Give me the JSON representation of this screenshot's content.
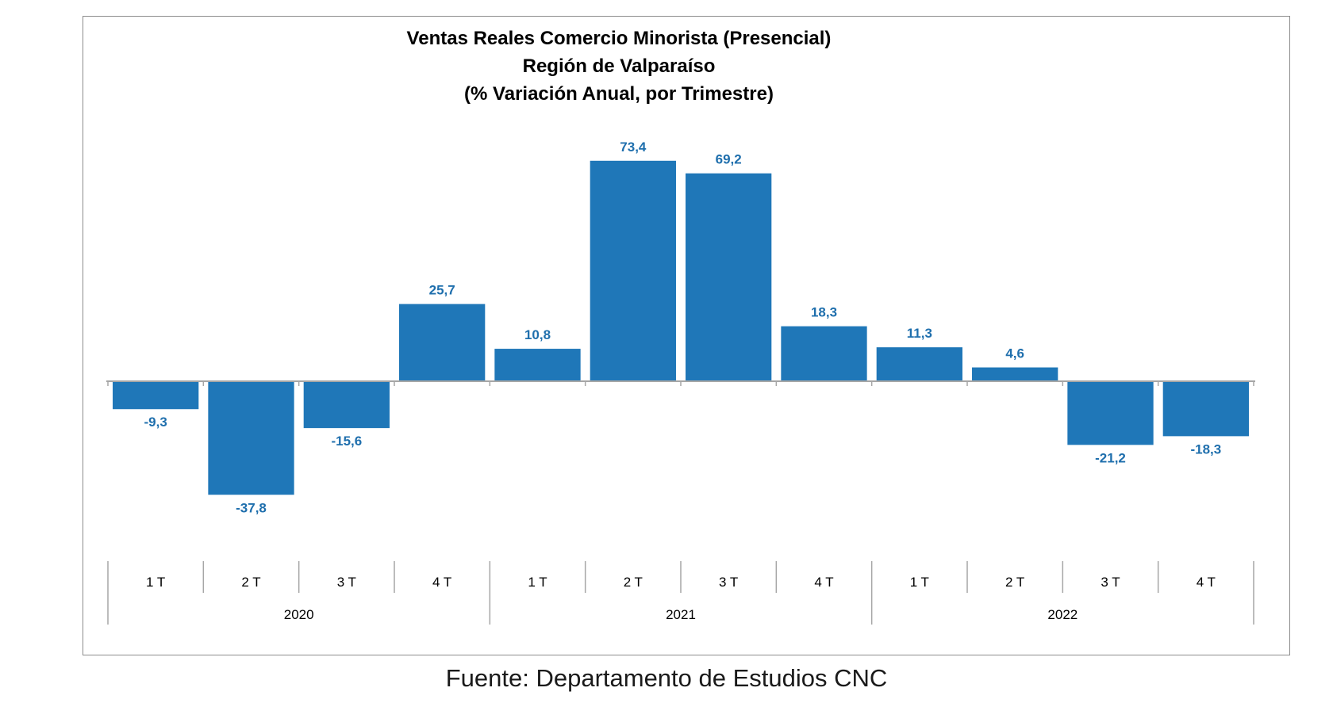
{
  "colors": {
    "bar": "#1f77b8",
    "label": "#1f6fad",
    "axis": "#a6a6a6",
    "frame": "#8c8c8c"
  },
  "source": "Fuente: Departamento de Estudios CNC",
  "chart_data": {
    "type": "bar",
    "title": [
      "Ventas Reales Comercio Minorista (Presencial)",
      "Región de Valparaíso",
      "(% Variación Anual, por Trimestre)"
    ],
    "xlabel": "",
    "ylabel": "",
    "categories": [
      "1 T",
      "2 T",
      "3 T",
      "4 T",
      "1 T",
      "2 T",
      "3 T",
      "4 T",
      "1 T",
      "2 T",
      "3 T",
      "4 T"
    ],
    "groups": [
      {
        "label": "2020",
        "count": 4
      },
      {
        "label": "2021",
        "count": 4
      },
      {
        "label": "2022",
        "count": 4
      }
    ],
    "values": [
      -9.3,
      -37.8,
      -15.6,
      25.7,
      10.8,
      73.4,
      69.2,
      18.3,
      11.3,
      4.6,
      -21.2,
      -18.3
    ],
    "data_labels": [
      "-9,3",
      "-37,8",
      "-15,6",
      "25,7",
      "10,8",
      "73,4",
      "69,2",
      "18,3",
      "11,3",
      "4,6",
      "-21,2",
      "-18,3"
    ],
    "ylim": [
      -50,
      80
    ],
    "grid": false,
    "legend": "none"
  }
}
